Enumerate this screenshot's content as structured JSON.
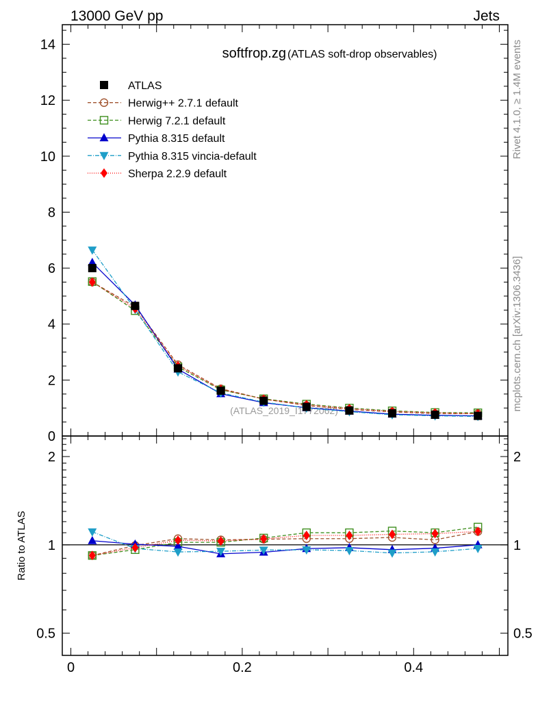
{
  "header": {
    "left": "13000 GeV pp",
    "right": "Jets"
  },
  "title": {
    "main": "softfrop.zg",
    "sub": "(ATLAS soft-drop observables)"
  },
  "side_labels": {
    "rivet": "Rivet 4.1.0, ≥ 1.4M events",
    "mcplots": "mcplots.cern.ch [arXiv:1306.3436]"
  },
  "watermark": "(ATLAS_2019_I1772062)",
  "colors": {
    "atlas": "#000000",
    "herwigpp": "#a0522d",
    "herwig7": "#3f8f1f",
    "pythia": "#0000cc",
    "vincia": "#1e9ec8",
    "sherpa": "#ff0000"
  },
  "chart_data": [
    {
      "type": "line",
      "panel": "main",
      "title": "softfrop.zg (ATLAS soft-drop observables)",
      "xlabel": "",
      "ylabel": "",
      "xlim": [
        -0.01,
        0.51
      ],
      "ylim": [
        0,
        14.7
      ],
      "yticks": [
        0,
        2,
        4,
        6,
        8,
        10,
        12,
        14
      ],
      "ytick_labels": [
        "0",
        "2",
        "4",
        "6",
        "8",
        "10",
        "12",
        "14"
      ],
      "x": [
        0.025,
        0.075,
        0.125,
        0.175,
        0.225,
        0.275,
        0.325,
        0.375,
        0.425,
        0.475
      ],
      "legend": [
        "ATLAS",
        "Herwig++ 2.7.1 default",
        "Herwig 7.2.1 default",
        "Pythia 8.315 default",
        "Pythia 8.315 vincia-default",
        "Sherpa 2.2.9 default"
      ],
      "legend_position": "top-left",
      "series": [
        {
          "name": "ATLAS",
          "key": "atlas",
          "marker": "square-filled",
          "dash": "none",
          "values": [
            6.0,
            4.65,
            2.42,
            1.62,
            1.26,
            1.04,
            0.91,
            0.81,
            0.76,
            0.72
          ]
        },
        {
          "name": "Herwig++ 2.7.1 default",
          "key": "herwigpp",
          "marker": "circle-open",
          "dash": "5,3",
          "values": [
            5.5,
            4.62,
            2.55,
            1.69,
            1.32,
            1.09,
            0.95,
            0.86,
            0.8,
            0.8
          ]
        },
        {
          "name": "Herwig 7.2.1 default",
          "key": "herwig7",
          "marker": "square-open",
          "dash": "5,3",
          "values": [
            5.52,
            4.48,
            2.47,
            1.65,
            1.33,
            1.14,
            1.0,
            0.9,
            0.84,
            0.83
          ]
        },
        {
          "name": "Pythia 8.315 default",
          "key": "pythia",
          "marker": "triangle-up",
          "dash": "none",
          "values": [
            6.2,
            4.68,
            2.39,
            1.51,
            1.19,
            1.01,
            0.89,
            0.78,
            0.74,
            0.72
          ]
        },
        {
          "name": "Pythia 8.315 vincia-default",
          "key": "vincia",
          "marker": "triangle-down",
          "dash": "6,2,1,2",
          "values": [
            6.65,
            4.52,
            2.29,
            1.54,
            1.21,
            1.0,
            0.87,
            0.76,
            0.72,
            0.7
          ]
        },
        {
          "name": "Sherpa 2.2.9 default",
          "key": "sherpa",
          "marker": "diamond",
          "dash": "1,2",
          "values": [
            5.5,
            4.55,
            2.51,
            1.67,
            1.32,
            1.12,
            0.98,
            0.88,
            0.83,
            0.8
          ]
        }
      ]
    },
    {
      "type": "line",
      "panel": "ratio",
      "xlabel": "",
      "ylabel": "Ratio to ATLAS",
      "yscale": "log",
      "xlim": [
        -0.01,
        0.51
      ],
      "ylim": [
        0.42,
        2.35
      ],
      "yticks": [
        0.5,
        1,
        2
      ],
      "ytick_labels": [
        "0.5",
        "1",
        "2"
      ],
      "xticks": [
        0,
        0.2,
        0.4
      ],
      "xtick_labels": [
        "0",
        "0.2",
        "0.4"
      ],
      "x": [
        0.025,
        0.075,
        0.125,
        0.175,
        0.225,
        0.275,
        0.325,
        0.375,
        0.425,
        0.475
      ],
      "reference_line": 1,
      "series": [
        {
          "name": "Herwig++ 2.7.1 default",
          "key": "herwigpp",
          "marker": "circle-open",
          "dash": "5,3",
          "values": [
            0.92,
            0.995,
            1.05,
            1.04,
            1.045,
            1.05,
            1.05,
            1.06,
            1.04,
            1.11
          ]
        },
        {
          "name": "Herwig 7.2.1 default",
          "key": "herwig7",
          "marker": "square-open",
          "dash": "5,3",
          "values": [
            0.92,
            0.963,
            1.02,
            1.02,
            1.055,
            1.1,
            1.1,
            1.115,
            1.1,
            1.15
          ]
        },
        {
          "name": "Pythia 8.315 default",
          "key": "pythia",
          "marker": "triangle-up",
          "dash": "none",
          "values": [
            1.033,
            1.005,
            0.988,
            0.932,
            0.944,
            0.971,
            0.978,
            0.963,
            0.974,
            1.0
          ]
        },
        {
          "name": "Pythia 8.315 vincia-default",
          "key": "vincia",
          "marker": "triangle-down",
          "dash": "6,2,1,2",
          "values": [
            1.108,
            0.972,
            0.946,
            0.951,
            0.96,
            0.962,
            0.956,
            0.938,
            0.947,
            0.972
          ]
        },
        {
          "name": "Sherpa 2.2.9 default",
          "key": "sherpa",
          "marker": "diamond",
          "dash": "1,2",
          "values": [
            0.92,
            0.978,
            1.037,
            1.031,
            1.048,
            1.077,
            1.077,
            1.086,
            1.092,
            1.111
          ]
        }
      ]
    }
  ]
}
